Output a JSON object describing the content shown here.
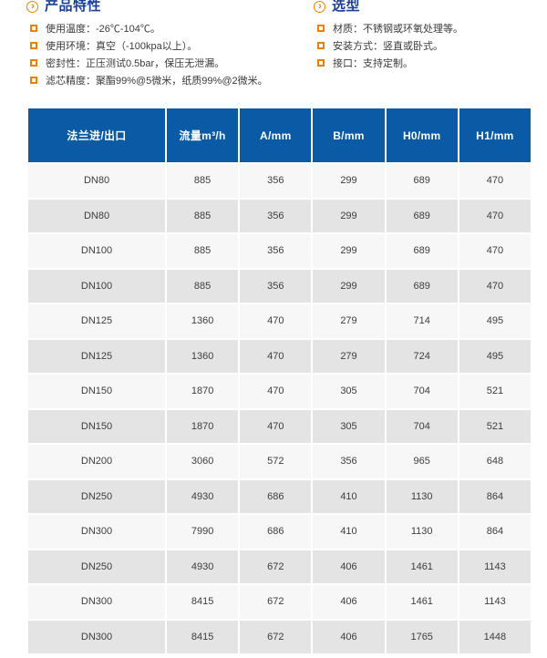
{
  "features": {
    "title": "产品特性",
    "items": [
      "使用温度：-26℃-104℃。",
      "使用环境：真空（-100kpa以上）。",
      "密封性：正压测试0.5bar，保压无泄漏。",
      "滤芯精度：聚酯99%@5微米，纸质99%@2微米。"
    ]
  },
  "selection": {
    "title": "选型",
    "items": [
      "材质：不锈钢或环氧处理等。",
      "安装方式：竖直或卧式。",
      "接口：支持定制。"
    ]
  },
  "table": {
    "headers": [
      "法兰进/出口",
      "流量m³/h",
      "A/mm",
      "B/mm",
      "H0/mm",
      "H1/mm"
    ],
    "rows": [
      [
        "DN80",
        "885",
        "356",
        "299",
        "689",
        "470"
      ],
      [
        "DN80",
        "885",
        "356",
        "299",
        "689",
        "470"
      ],
      [
        "DN100",
        "885",
        "356",
        "299",
        "689",
        "470"
      ],
      [
        "DN100",
        "885",
        "356",
        "299",
        "689",
        "470"
      ],
      [
        "DN125",
        "1360",
        "470",
        "279",
        "714",
        "495"
      ],
      [
        "DN125",
        "1360",
        "470",
        "279",
        "724",
        "495"
      ],
      [
        "DN150",
        "1870",
        "470",
        "305",
        "704",
        "521"
      ],
      [
        "DN150",
        "1870",
        "470",
        "305",
        "704",
        "521"
      ],
      [
        "DN200",
        "3060",
        "572",
        "356",
        "965",
        "648"
      ],
      [
        "DN250",
        "4930",
        "686",
        "410",
        "1130",
        "864"
      ],
      [
        "DN300",
        "7990",
        "686",
        "410",
        "1130",
        "864"
      ],
      [
        "DN250",
        "4930",
        "672",
        "406",
        "1461",
        "1143"
      ],
      [
        "DN300",
        "8415",
        "672",
        "406",
        "1461",
        "1143"
      ],
      [
        "DN300",
        "8415",
        "672",
        "406",
        "1765",
        "1448"
      ]
    ]
  },
  "colors": {
    "header_blue": "#0b5aa5",
    "title_blue": "#1a3f99",
    "accent_orange": "#f08200",
    "row_light": "#f7f7f7",
    "row_dark": "#e4e4e4"
  }
}
